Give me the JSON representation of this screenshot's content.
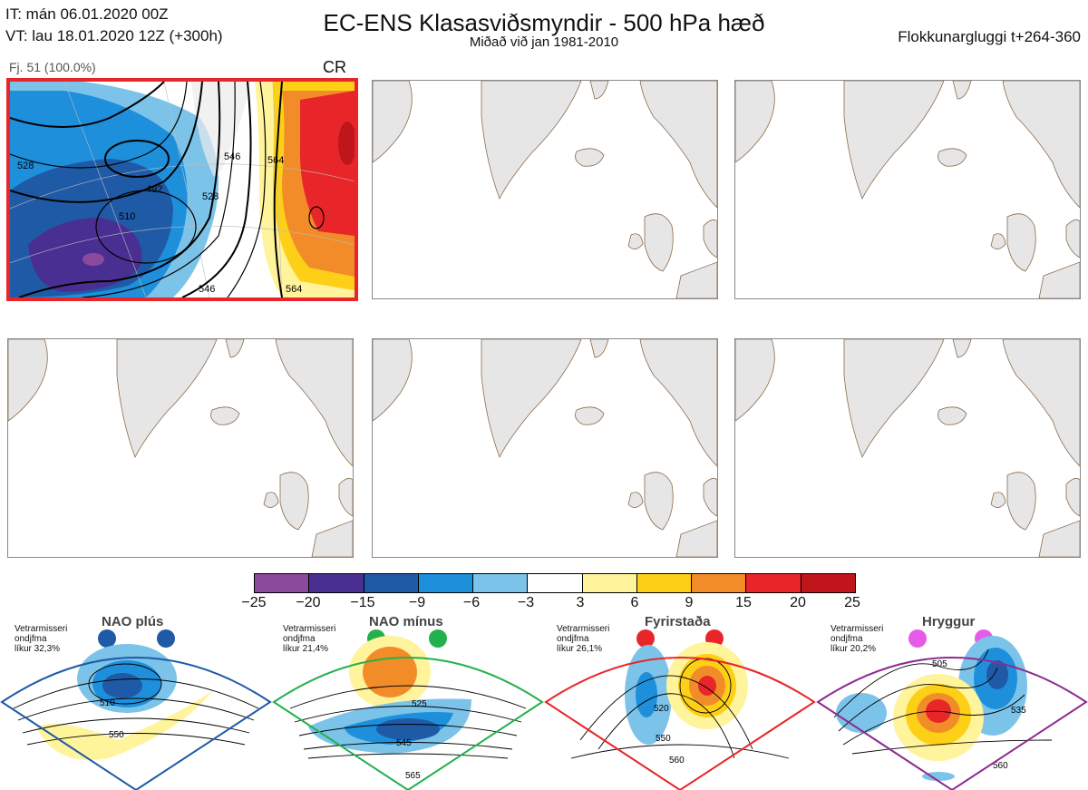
{
  "header": {
    "it_line": "IT: mán 06.01.2020 00Z",
    "vt_line": "VT: lau 18.01.2020 12Z  (+300h)",
    "title": "EC-ENS Klasasviðsmyndir - 500 hPa hæð",
    "subtitle": "Miðað við jan 1981-2010",
    "window": "Flokkunargluggi t+264-360"
  },
  "selected_panel": {
    "member_label": "Fj. 51 (100.0%)",
    "regime_code": "CR",
    "contour_labels": [
      "528",
      "510",
      "492",
      "528",
      "546",
      "564",
      "546",
      "564"
    ]
  },
  "colorbar": {
    "ticks": [
      "−25",
      "−20",
      "−15",
      "−9",
      "−6",
      "−3",
      "3",
      "6",
      "9",
      "15",
      "20",
      "25"
    ],
    "colors": [
      "#8c4a9c",
      "#4a2f92",
      "#1f5aa6",
      "#1e8fdb",
      "#7cc3ea",
      "#ffffff",
      "#fff39b",
      "#fdd017",
      "#f28c28",
      "#e8262a",
      "#c1151c"
    ]
  },
  "regimes": [
    {
      "name": "NAO plús",
      "meta": "Vetrarmisseri\nondjfma\nlíkur 32,3%",
      "color": "#1f5aa6",
      "labels": [
        "510",
        "550"
      ]
    },
    {
      "name": "NAO mínus",
      "meta": "Vetrarmisseri\nondjfma\nlíkur 21,4%",
      "color": "#22b14c",
      "labels": [
        "525",
        "545",
        "565"
      ]
    },
    {
      "name": "Fyrirstaða",
      "meta": "Vetrarmisseri\nondjfma\nlíkur 26,1%",
      "color": "#e8262a",
      "labels": [
        "520",
        "550",
        "560"
      ]
    },
    {
      "name": "Hryggur",
      "meta": "Vetrarmisseri\nondjfma\nlíkur 20,2%",
      "color": "#e85ae8",
      "labels": [
        "505",
        "535",
        "560"
      ]
    }
  ]
}
